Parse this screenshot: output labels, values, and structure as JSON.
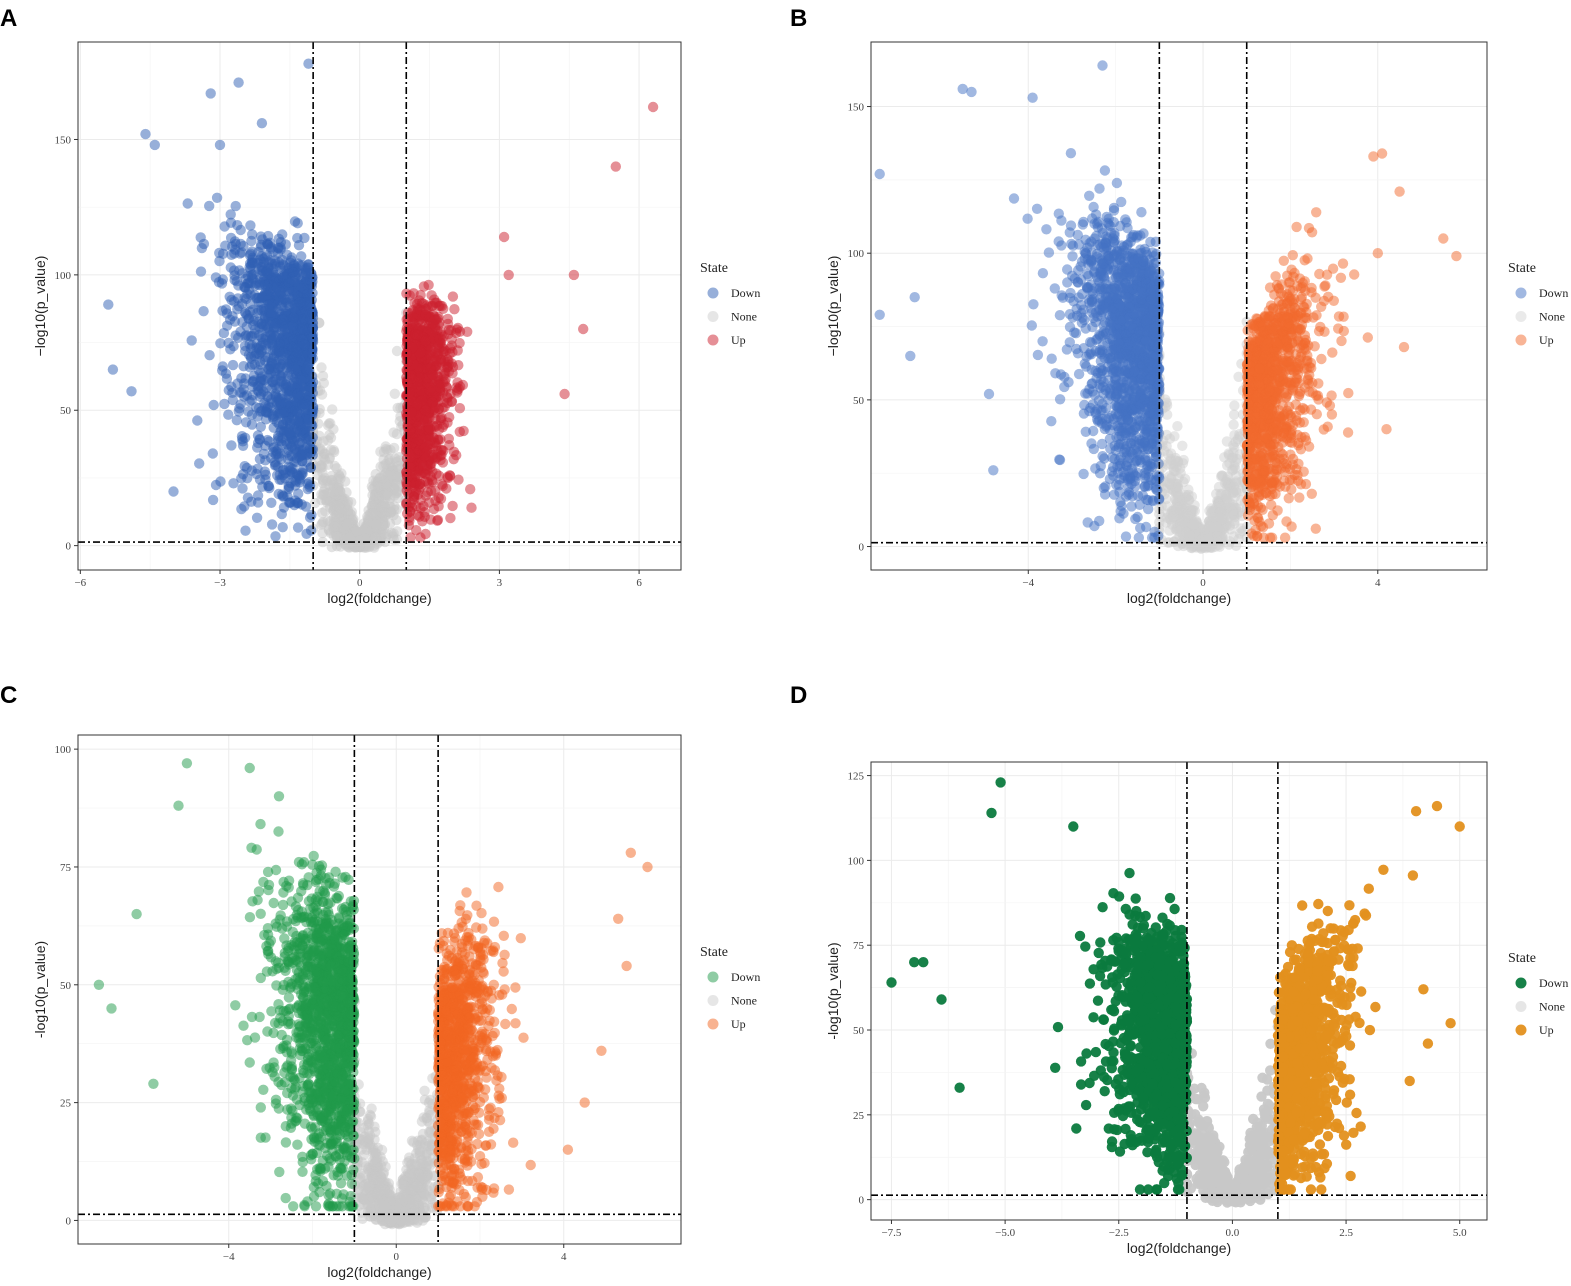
{
  "chart_data": [
    {
      "panel_label": "A",
      "type": "scatter",
      "xlabel": "log2(foldchange)",
      "ylabel": "−log10(p_value)",
      "xlim": [
        -6.05,
        6.9
      ],
      "ylim": [
        -9,
        186
      ],
      "xticks": [
        -6,
        -3,
        0,
        3,
        6
      ],
      "yticks": [
        0,
        50,
        100,
        150
      ],
      "fc_threshold": [
        -1,
        1
      ],
      "p_threshold_line": 1.3,
      "grid": true,
      "legend_placement": "right",
      "legend": {
        "title": "State",
        "entries": [
          "Down",
          "None",
          "Up"
        ]
      },
      "colors": {
        "Down": "#2f5fb3",
        "None": "#c8c8c8",
        "Up": "#cc1f2d"
      },
      "alpha": 0.5,
      "clouds": {
        "Down": {
          "n": 1400,
          "x_scale": 1.05,
          "x_max_abs": 5.6,
          "y_at_threshold": 95,
          "y_slope": 12
        },
        "None": {
          "n": 900,
          "k": 75
        },
        "Up": {
          "n": 1000,
          "x_scale": 0.55,
          "x_max_abs": 3.3,
          "y_at_threshold": 80,
          "y_slope": 5
        }
      },
      "notable_points": {
        "Down": [
          [
            -5.4,
            89
          ],
          [
            -5.3,
            65
          ],
          [
            -1.1,
            178
          ],
          [
            -2.6,
            171
          ],
          [
            -3.2,
            167
          ],
          [
            -4.6,
            152
          ],
          [
            -4.4,
            148
          ],
          [
            -2.1,
            156
          ],
          [
            -3.0,
            148
          ],
          [
            -4.9,
            57
          ],
          [
            -4.0,
            20
          ]
        ],
        "Up": [
          [
            6.3,
            162
          ],
          [
            5.5,
            140
          ],
          [
            4.8,
            80
          ],
          [
            4.6,
            100
          ],
          [
            4.4,
            56
          ],
          [
            3.1,
            114
          ],
          [
            3.2,
            100
          ],
          [
            2.4,
            14
          ]
        ]
      }
    },
    {
      "panel_label": "B",
      "type": "scatter",
      "xlabel": "log2(foldchange)",
      "ylabel": "−log10(p_value)",
      "xlim": [
        -7.6,
        6.5
      ],
      "ylim": [
        -8,
        172
      ],
      "xticks": [
        -4,
        0,
        4
      ],
      "yticks": [
        0,
        50,
        100,
        150
      ],
      "fc_threshold": [
        -1,
        1
      ],
      "p_threshold_line": 1.3,
      "grid": true,
      "legend_placement": "right",
      "legend": {
        "title": "State",
        "entries": [
          "Down",
          "None",
          "Up"
        ]
      },
      "colors": {
        "Down": "#4472c4",
        "None": "#d0d0d0",
        "Up": "#f26a2e"
      },
      "alpha": 0.5,
      "clouds": {
        "Down": {
          "n": 1500,
          "x_scale": 1.1,
          "x_max_abs": 6.0,
          "y_at_threshold": 90,
          "y_slope": 14
        },
        "None": {
          "n": 900,
          "k": 60
        },
        "Up": {
          "n": 1100,
          "x_scale": 0.9,
          "x_max_abs": 4.6,
          "y_at_threshold": 65,
          "y_slope": 22
        }
      },
      "notable_points": {
        "Down": [
          [
            -2.3,
            164
          ],
          [
            -7.4,
            127
          ],
          [
            -5.5,
            156
          ],
          [
            -5.3,
            155
          ],
          [
            -3.9,
            153
          ],
          [
            -7.4,
            79
          ],
          [
            -6.6,
            85
          ],
          [
            -6.7,
            65
          ],
          [
            -4.9,
            52
          ],
          [
            -4.8,
            26
          ]
        ],
        "Up": [
          [
            5.5,
            105
          ],
          [
            5.8,
            99
          ],
          [
            4.6,
            68
          ],
          [
            4.5,
            121
          ],
          [
            4.1,
            134
          ],
          [
            3.9,
            133
          ],
          [
            4.2,
            40
          ],
          [
            4.0,
            100
          ]
        ]
      }
    },
    {
      "panel_label": "C",
      "type": "scatter",
      "xlabel": "log2(foldchange)",
      "ylabel": "-log10(p_value)",
      "xlim": [
        -7.6,
        6.8
      ],
      "ylim": [
        -5,
        103
      ],
      "xticks": [
        -4,
        0,
        4
      ],
      "yticks": [
        0,
        25,
        50,
        75,
        100
      ],
      "fc_threshold": [
        -1,
        1
      ],
      "p_threshold_line": 1.3,
      "grid": true,
      "legend_placement": "right",
      "legend": {
        "title": "State",
        "entries": [
          "Down",
          "None",
          "Up"
        ]
      },
      "colors": {
        "Down": "#1f9a4a",
        "None": "#c8c8c8",
        "Up": "#f26522"
      },
      "alpha": 0.5,
      "clouds": {
        "Down": {
          "n": 1500,
          "x_scale": 1.1,
          "x_max_abs": 6.5,
          "y_at_threshold": 55,
          "y_slope": 7
        },
        "None": {
          "n": 900,
          "k": 35
        },
        "Up": {
          "n": 1000,
          "x_scale": 0.8,
          "x_max_abs": 4.8,
          "y_at_threshold": 45,
          "y_slope": 10
        }
      },
      "notable_points": {
        "Down": [
          [
            -5.0,
            97
          ],
          [
            -3.5,
            96
          ],
          [
            -7.1,
            50
          ],
          [
            -6.8,
            45
          ],
          [
            -5.2,
            88
          ],
          [
            -2.8,
            90
          ],
          [
            -6.2,
            65
          ],
          [
            -5.8,
            29
          ]
        ],
        "Up": [
          [
            5.6,
            78
          ],
          [
            6.0,
            75
          ],
          [
            5.5,
            54
          ],
          [
            4.9,
            36
          ],
          [
            4.5,
            25
          ],
          [
            4.1,
            15
          ],
          [
            5.3,
            64
          ]
        ]
      }
    },
    {
      "panel_label": "D",
      "type": "scatter",
      "xlabel": "log2(foldchange)",
      "ylabel": "-log10(p_value)",
      "xlim": [
        -7.95,
        5.6
      ],
      "ylim": [
        -6,
        129
      ],
      "xticks": [
        -7.5,
        -5.0,
        -2.5,
        0.0,
        2.5,
        5.0
      ],
      "yticks": [
        0,
        25,
        50,
        75,
        100,
        125
      ],
      "fc_threshold": [
        -1,
        1
      ],
      "p_threshold_line": 1.3,
      "grid": true,
      "legend_placement": "right",
      "legend": {
        "title": "State",
        "entries": [
          "Down",
          "None",
          "Up"
        ]
      },
      "colors": {
        "Down": "#0b7a3e",
        "None": "#c8c8c8",
        "Up": "#e3901e"
      },
      "alpha": 0.95,
      "clouds": {
        "Down": {
          "n": 1300,
          "x_scale": 1.0,
          "x_max_abs": 6.0,
          "y_at_threshold": 65,
          "y_slope": 9
        },
        "None": {
          "n": 800,
          "k": 45
        },
        "Up": {
          "n": 1000,
          "x_scale": 0.9,
          "x_max_abs": 5.0,
          "y_at_threshold": 50,
          "y_slope": 22
        }
      },
      "notable_points": {
        "Down": [
          [
            -5.1,
            123
          ],
          [
            -7.5,
            64
          ],
          [
            -7.0,
            70
          ],
          [
            -6.8,
            70
          ],
          [
            -5.3,
            114
          ],
          [
            -3.5,
            110
          ],
          [
            -6.4,
            59
          ],
          [
            -6.0,
            33
          ]
        ],
        "Up": [
          [
            4.5,
            116
          ],
          [
            5.0,
            110
          ],
          [
            4.8,
            52
          ],
          [
            4.2,
            62
          ],
          [
            4.3,
            46
          ],
          [
            3.9,
            35
          ],
          [
            2.6,
            7
          ]
        ]
      }
    }
  ]
}
